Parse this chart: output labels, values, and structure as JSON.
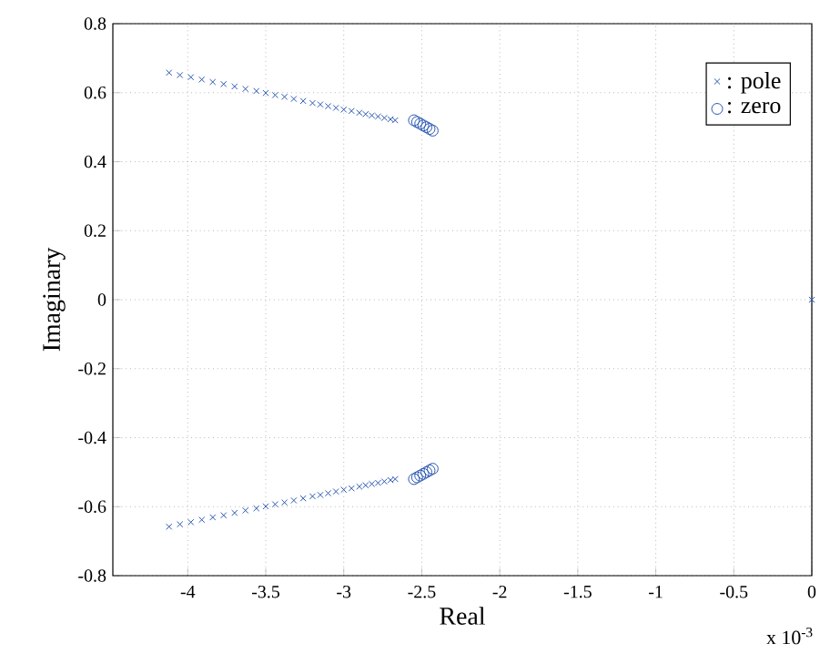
{
  "chart_data": {
    "type": "scatter",
    "xlabel": "Real",
    "ylabel": "Imaginary",
    "annotations": [
      "x 10$^{-3}$"
    ],
    "xlim": [
      -4.48,
      0
    ],
    "xticks": [
      -4,
      -3.5,
      -3,
      -2.5,
      -2,
      -1.5,
      -1,
      -0.5,
      0
    ],
    "ylim": [
      -0.8,
      0.8
    ],
    "yticks": [
      -0.8,
      -0.6,
      -0.4,
      -0.2,
      0,
      0.2,
      0.4,
      0.6,
      0.8
    ],
    "grid": true,
    "legend": "top right",
    "series": [
      {
        "name": ": pole",
        "color": "#2a56b0",
        "marker": "cross",
        "x": [
          -4.12,
          -4.05,
          -3.98,
          -3.91,
          -3.84,
          -3.77,
          -3.7,
          -3.63,
          -3.56,
          -3.5,
          -3.44,
          -3.38,
          -3.32,
          -3.26,
          -3.2,
          -3.15,
          -3.1,
          -3.05,
          -3.0,
          -2.95,
          -2.9,
          -2.86,
          -2.82,
          -2.78,
          -2.74,
          -2.7,
          -2.67,
          -4.12,
          -4.05,
          -3.98,
          -3.91,
          -3.84,
          -3.77,
          -3.7,
          -3.63,
          -3.56,
          -3.5,
          -3.44,
          -3.38,
          -3.32,
          -3.26,
          -3.2,
          -3.15,
          -3.1,
          -3.05,
          -3.0,
          -2.95,
          -2.9,
          -2.86,
          -2.82,
          -2.78,
          -2.74,
          -2.7,
          -2.67,
          0
        ],
        "values": [
          0.658,
          0.651,
          0.645,
          0.638,
          0.631,
          0.625,
          0.618,
          0.611,
          0.605,
          0.599,
          0.593,
          0.588,
          0.582,
          0.576,
          0.57,
          0.566,
          0.561,
          0.556,
          0.551,
          0.547,
          0.542,
          0.538,
          0.534,
          0.531,
          0.527,
          0.523,
          0.52,
          -0.658,
          -0.651,
          -0.645,
          -0.638,
          -0.631,
          -0.625,
          -0.618,
          -0.611,
          -0.605,
          -0.599,
          -0.593,
          -0.588,
          -0.582,
          -0.576,
          -0.57,
          -0.566,
          -0.561,
          -0.556,
          -0.551,
          -0.547,
          -0.542,
          -0.538,
          -0.534,
          -0.531,
          -0.527,
          -0.523,
          -0.52,
          0
        ]
      },
      {
        "name": ": zero",
        "color": "#2a56b0",
        "marker": "circle",
        "x": [
          -2.55,
          -2.53,
          -2.51,
          -2.49,
          -2.47,
          -2.45,
          -2.43,
          -2.55,
          -2.53,
          -2.51,
          -2.49,
          -2.47,
          -2.45,
          -2.43
        ],
        "values": [
          0.52,
          0.515,
          0.51,
          0.505,
          0.5,
          0.495,
          0.49,
          -0.52,
          -0.515,
          -0.51,
          -0.505,
          -0.5,
          -0.495,
          -0.49
        ]
      }
    ]
  }
}
